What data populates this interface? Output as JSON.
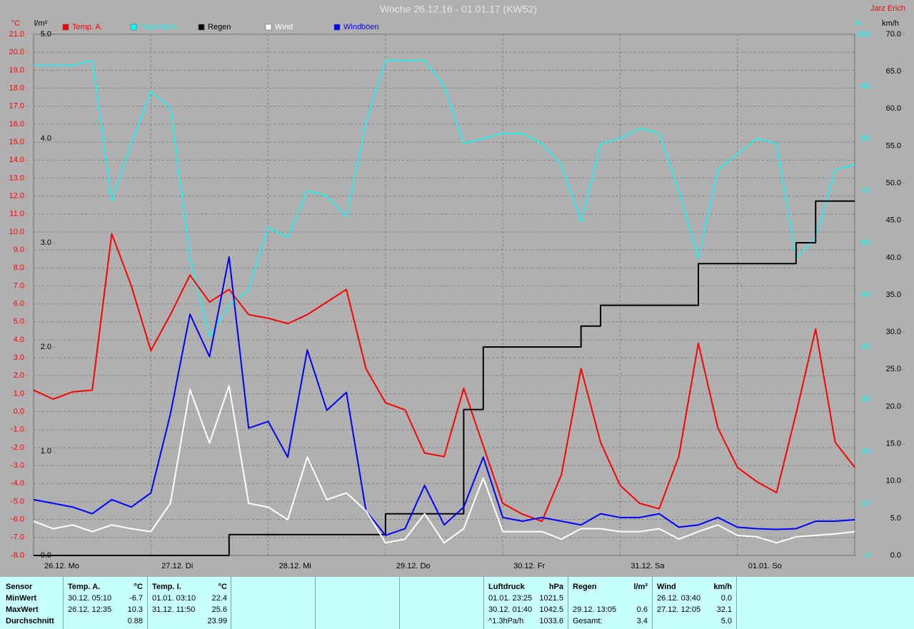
{
  "chart_data": {
    "type": "line",
    "title": "Woche 26.12.16 - 01.01.17 (KW52)",
    "author": "Jarz Erich",
    "y_label": "°C",
    "y3_label": "l/m²",
    "y2_label": "%",
    "y4_label": "km/h",
    "grid": true,
    "categories": [
      "26.12. Mo",
      null,
      null,
      null,
      null,
      null,
      "27.12. Di",
      null,
      null,
      null,
      null,
      null,
      "28.12. Mi",
      null,
      null,
      null,
      null,
      null,
      "29.12. Do",
      null,
      null,
      null,
      null,
      null,
      "30.12. Fr",
      null,
      null,
      null,
      null,
      null,
      "31.12. Sa",
      null,
      null,
      null,
      null,
      null,
      "01.01. So",
      null,
      null,
      null,
      null,
      null,
      null
    ],
    "ylim": [
      -8,
      21
    ],
    "yticks": [
      {
        "value": -8,
        "label": "-8.0"
      },
      {
        "value": -7,
        "label": "-7.0"
      },
      {
        "value": -6,
        "label": "-6.0"
      },
      {
        "value": -5,
        "label": "-5.0"
      },
      {
        "value": -4,
        "label": "-4.0"
      },
      {
        "value": -3,
        "label": "-3.0"
      },
      {
        "value": -2,
        "label": "-2.0"
      },
      {
        "value": -1,
        "label": "-1.0"
      },
      {
        "value": 0,
        "label": "0.0"
      },
      {
        "value": 1,
        "label": "1.0"
      },
      {
        "value": 2,
        "label": "2.0"
      },
      {
        "value": 3,
        "label": "3.0"
      },
      {
        "value": 4,
        "label": "4.0"
      },
      {
        "value": 5,
        "label": "5.0"
      },
      {
        "value": 6,
        "label": "6.0"
      },
      {
        "value": 7,
        "label": "7.0"
      },
      {
        "value": 8,
        "label": "8.0"
      },
      {
        "value": 9,
        "label": "9.0"
      },
      {
        "value": 10,
        "label": "10.0"
      },
      {
        "value": 11,
        "label": "11.0"
      },
      {
        "value": 12,
        "label": "12.0"
      },
      {
        "value": 13,
        "label": "13.0"
      },
      {
        "value": 14,
        "label": "14.0"
      },
      {
        "value": 15,
        "label": "15.0"
      },
      {
        "value": 16,
        "label": "16.0"
      },
      {
        "value": 17,
        "label": "17.0"
      },
      {
        "value": 18,
        "label": "18.0"
      },
      {
        "value": 19,
        "label": "19.0"
      },
      {
        "value": 20,
        "label": "20.0"
      },
      {
        "value": 21,
        "label": "21.0"
      }
    ],
    "y3lim": [
      0,
      5
    ],
    "y3ticks": [
      {
        "value": 0,
        "label": "0.0"
      },
      {
        "value": 1,
        "label": "1.0"
      },
      {
        "value": 2,
        "label": "2.0"
      },
      {
        "value": 3,
        "label": "3.0"
      },
      {
        "value": 4,
        "label": "4.0"
      },
      {
        "value": 5,
        "label": "5.0"
      }
    ],
    "y2lim": [
      0,
      100
    ],
    "y2ticks": [
      0,
      10,
      20,
      30,
      40,
      50,
      60,
      70,
      80,
      90,
      100
    ],
    "y4lim": [
      0,
      70
    ],
    "y4ticks": [
      {
        "value": 0,
        "label": "0.0"
      },
      {
        "value": 5,
        "label": "5.0"
      },
      {
        "value": 10,
        "label": "10.0"
      },
      {
        "value": 15,
        "label": "15.0"
      },
      {
        "value": 20,
        "label": "20.0"
      },
      {
        "value": 25,
        "label": "25.0"
      },
      {
        "value": 30,
        "label": "30.0"
      },
      {
        "value": 35,
        "label": "35.0"
      },
      {
        "value": 40,
        "label": "40.0"
      },
      {
        "value": 45,
        "label": "45.0"
      },
      {
        "value": 50,
        "label": "50.0"
      },
      {
        "value": 55,
        "label": "55.0"
      },
      {
        "value": 60,
        "label": "60.0"
      },
      {
        "value": 65,
        "label": "65.0"
      },
      {
        "value": 70,
        "label": "70.0"
      }
    ],
    "series": [
      {
        "name": "Temp. A.",
        "color": "#ff0000",
        "axis": "y",
        "values": [
          1.2,
          0.7,
          1.1,
          1.2,
          9.9,
          7.0,
          3.4,
          5.4,
          7.6,
          6.1,
          6.8,
          5.4,
          5.2,
          4.9,
          5.4,
          6.1,
          6.8,
          2.4,
          0.5,
          0.1,
          -2.3,
          -2.5,
          1.3,
          -1.9,
          -5.1,
          -5.7,
          -6.1,
          -3.5,
          2.4,
          -1.7,
          -4.1,
          -5.1,
          -5.4,
          -2.5,
          3.8,
          -0.9,
          -3.1,
          -3.9,
          -4.5,
          -0.1,
          4.6,
          -1.7,
          -3.1
        ]
      },
      {
        "name": "Feuchte A.",
        "color": "#00ffff",
        "axis": "y2",
        "values": [
          94,
          94,
          94,
          95,
          68,
          79,
          89,
          86,
          57,
          42,
          48,
          51,
          63,
          61,
          70,
          69,
          65,
          83,
          95,
          95,
          95,
          90,
          79,
          80,
          81,
          81,
          79,
          75,
          64,
          79,
          80,
          82,
          81,
          70,
          57,
          74,
          77,
          80,
          79,
          57,
          61,
          74,
          75
        ]
      },
      {
        "name": "Regen",
        "color": "#000000",
        "axis": "y3",
        "step": true,
        "values": [
          0,
          0,
          0,
          0,
          0,
          0,
          0,
          0,
          0,
          0,
          0.2,
          0.2,
          0.2,
          0.2,
          0.2,
          0.2,
          0.2,
          0.2,
          0.4,
          0.4,
          0.4,
          0.4,
          1.4,
          2.0,
          2.0,
          2.0,
          2.0,
          2.0,
          2.2,
          2.4,
          2.4,
          2.4,
          2.4,
          2.4,
          2.8,
          2.8,
          2.8,
          2.8,
          2.8,
          3.0,
          3.4,
          3.4,
          3.4
        ]
      },
      {
        "name": "Wind",
        "color": "#ffffff",
        "axis": "y4",
        "values": [
          4.6,
          3.6,
          4.1,
          3.2,
          4.1,
          3.6,
          3.2,
          7.0,
          22.3,
          15.1,
          22.8,
          7.0,
          6.5,
          4.8,
          13.2,
          7.5,
          8.4,
          6.0,
          1.7,
          2.2,
          5.6,
          1.7,
          3.6,
          10.4,
          3.2,
          3.2,
          3.2,
          2.2,
          3.6,
          3.6,
          3.2,
          3.2,
          3.6,
          2.2,
          3.2,
          4.1,
          2.7,
          2.5,
          1.7,
          2.5,
          2.7,
          2.9,
          3.2
        ]
      },
      {
        "name": "Windböen",
        "color": "#0000ff",
        "axis": "y4",
        "values": [
          7.5,
          7.0,
          6.5,
          5.6,
          7.5,
          6.5,
          8.4,
          19.0,
          32.4,
          26.7,
          40.1,
          17.1,
          18.0,
          13.2,
          27.6,
          19.5,
          21.9,
          6.0,
          2.7,
          3.6,
          9.4,
          4.1,
          6.5,
          13.2,
          5.1,
          4.6,
          5.1,
          4.6,
          4.1,
          5.6,
          5.1,
          5.1,
          5.6,
          3.8,
          4.1,
          5.1,
          3.8,
          3.6,
          3.5,
          3.6,
          4.6,
          4.6,
          4.8
        ]
      }
    ]
  },
  "table": {
    "row_header": "Sensor",
    "row_labels": [
      "MinWert",
      "MaxWert",
      "Durchschnitt"
    ],
    "columns": [
      {
        "name": "Temp. A.",
        "unit": "°C",
        "rows": [
          [
            "30.12. 05:10",
            "-6.7"
          ],
          [
            "26.12. 12:35",
            "10.3"
          ],
          [
            null,
            "0.88"
          ]
        ]
      },
      {
        "name": "Temp. I.",
        "unit": "°C",
        "rows": [
          [
            "01.01. 03:10",
            "22.4"
          ],
          [
            "31.12. 11:50",
            "25.6"
          ],
          [
            null,
            "23.99"
          ]
        ]
      },
      {
        "name": "Luftdruck",
        "unit": "hPa",
        "rows": [
          [
            "01.01. 23:25",
            "1021.5"
          ],
          [
            "30.12. 01:40",
            "1042.5"
          ],
          [
            "^1.3hPa/h",
            "1033.6"
          ]
        ]
      },
      {
        "name": "Regen",
        "unit": "l/m²",
        "rows": [
          [
            null,
            null
          ],
          [
            "29.12. 13:05",
            "0.6"
          ],
          [
            "Gesamt:",
            "3.4"
          ]
        ]
      },
      {
        "name": "Wind",
        "unit": "km/h",
        "rows": [
          [
            "26.12. 03:40",
            "0.0"
          ],
          [
            "27.12. 12:05",
            "32.1"
          ],
          [
            null,
            "5.0"
          ]
        ]
      }
    ]
  }
}
